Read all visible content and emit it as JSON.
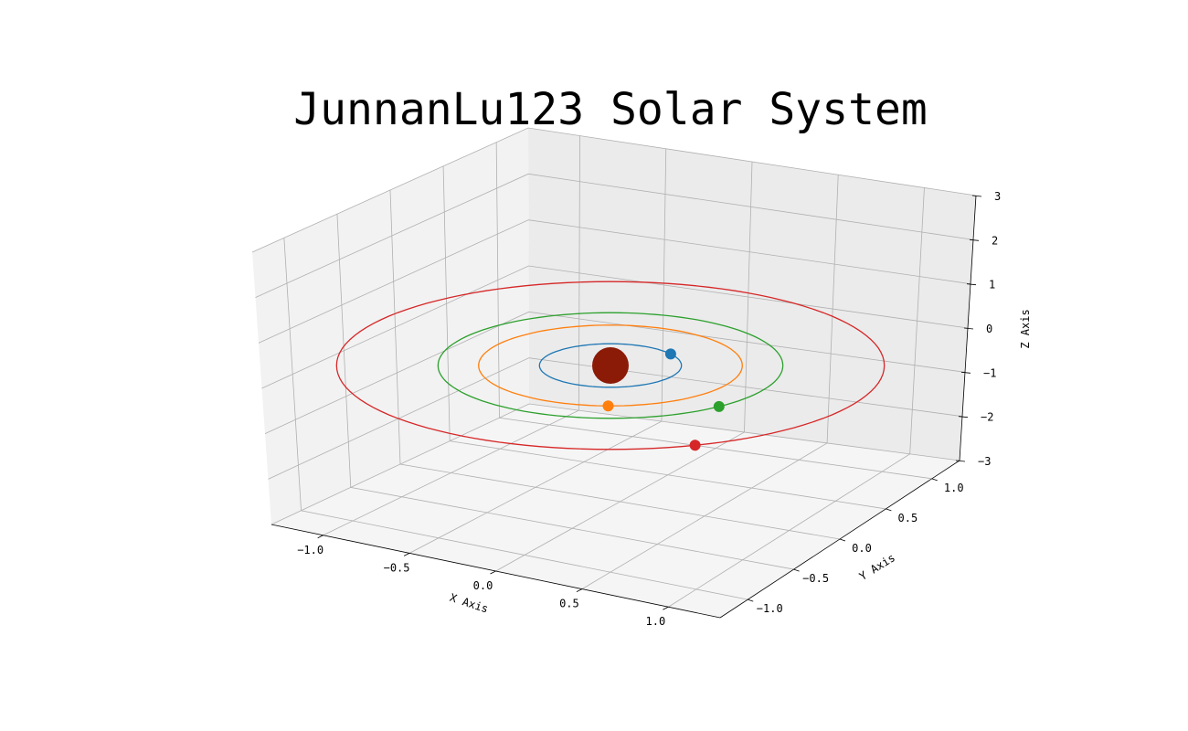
{
  "chart_data": {
    "type": "3d-orbit",
    "title": "JunnanLu123 Solar System",
    "xlabel": "X Axis",
    "ylabel": "Y Axis",
    "zlabel": "Z Axis",
    "xlim": [
      -1.3,
      1.3
    ],
    "ylim": [
      -1.3,
      1.3
    ],
    "zlim": [
      -3,
      3
    ],
    "x_ticks": [
      "−1.0",
      "−0.5",
      "0.0",
      "0.5",
      "1.0"
    ],
    "y_ticks": [
      "−1.0",
      "−0.5",
      "0.0",
      "0.5",
      "1.0"
    ],
    "z_ticks": [
      "−3",
      "−2",
      "−1",
      "0",
      "1",
      "2",
      "3"
    ],
    "grid": true,
    "sun": {
      "x": 0,
      "y": 0,
      "z": 0,
      "color": "#8b1a06"
    },
    "planets": [
      {
        "orbit_radius": 0.35,
        "phase_deg": 32,
        "color": "#1f77b4"
      },
      {
        "orbit_radius": 0.65,
        "phase_deg": -91,
        "color": "#ff7f0e"
      },
      {
        "orbit_radius": 0.85,
        "phase_deg": -51,
        "color": "#2ca02c"
      },
      {
        "orbit_radius": 1.35,
        "phase_deg": -72,
        "color": "#d62728"
      }
    ]
  }
}
